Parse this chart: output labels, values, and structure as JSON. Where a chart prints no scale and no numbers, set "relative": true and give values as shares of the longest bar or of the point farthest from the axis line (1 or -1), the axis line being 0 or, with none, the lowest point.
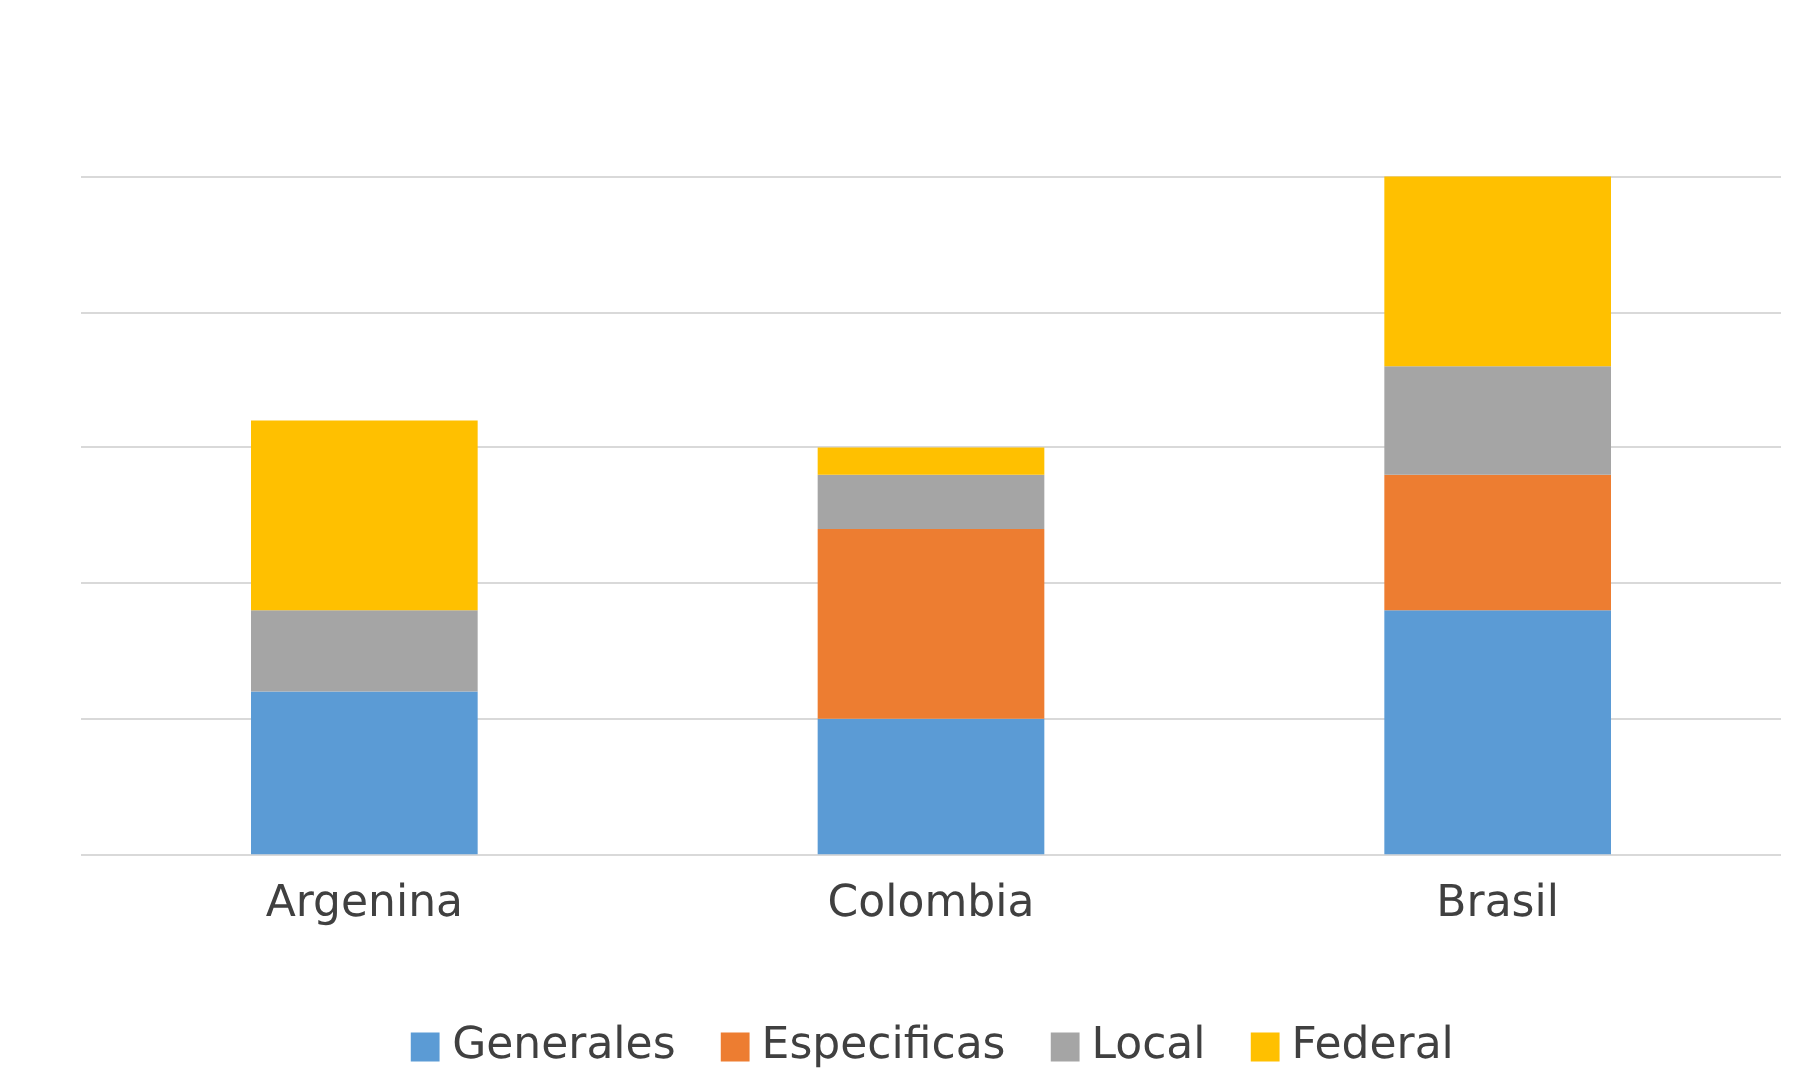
{
  "chart_data": {
    "type": "bar",
    "stacked": true,
    "relative": true,
    "grid": "y",
    "legend": "bottom",
    "tick_labels": "x",
    "categories": [
      "Argenina",
      "Colombia",
      "Brasil"
    ],
    "series": [
      {
        "name": "Generales",
        "color": "#5b9bd5",
        "values": [
          0.24,
          0.2,
          0.36
        ]
      },
      {
        "name": "Especificas",
        "color": "#ed7d31",
        "values": [
          0,
          0.28,
          0.2
        ]
      },
      {
        "name": "Local",
        "color": "#a5a5a5",
        "values": [
          0.12,
          0.08,
          0.16
        ]
      },
      {
        "name": "Federal",
        "color": "#ffc000",
        "values": [
          0.28,
          0.04,
          0.28
        ]
      }
    ]
  }
}
